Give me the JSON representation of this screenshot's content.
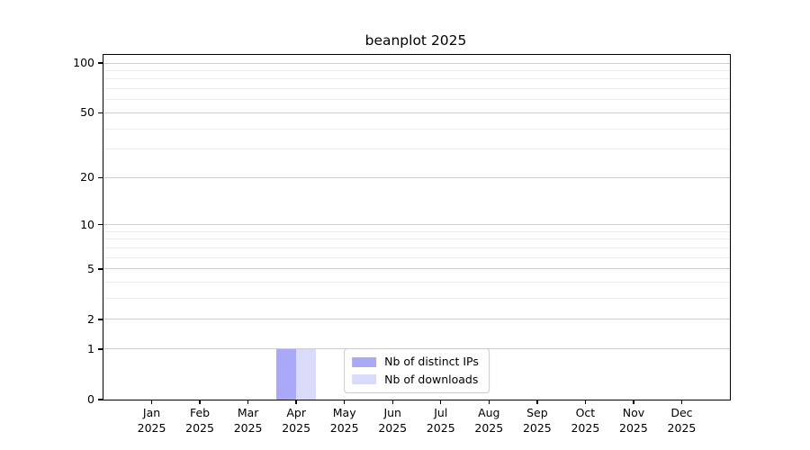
{
  "title": "beanplot 2025",
  "chart_data": {
    "type": "bar",
    "title": "beanplot 2025",
    "categories": [
      "Jan",
      "Feb",
      "Mar",
      "Apr",
      "May",
      "Jun",
      "Jul",
      "Aug",
      "Sep",
      "Oct",
      "Nov",
      "Dec"
    ],
    "year_label": "2025",
    "series": [
      {
        "name": "Nb of distinct IPs",
        "color": "#a9a9f7",
        "values": [
          0,
          0,
          0,
          1,
          0,
          0,
          0,
          0,
          0,
          0,
          0,
          0
        ]
      },
      {
        "name": "Nb of downloads",
        "color": "#dadaf9",
        "values": [
          0,
          0,
          0,
          1,
          0,
          0,
          0,
          0,
          0,
          0,
          0,
          0
        ]
      }
    ],
    "yscale": "log1p",
    "ylim": [
      0,
      112
    ],
    "yticks_major": [
      0,
      1,
      2,
      5,
      10,
      20,
      50,
      100
    ],
    "yticks_minor": [
      3,
      4,
      6,
      7,
      8,
      9,
      30,
      40,
      60,
      70,
      80,
      90
    ],
    "grid": "horizontal",
    "legend_position": "lower-center",
    "colors": {
      "grid_major": "#cdcdcd",
      "grid_minor": "#ededed",
      "spine": "#000000",
      "background": "#ffffff"
    }
  }
}
